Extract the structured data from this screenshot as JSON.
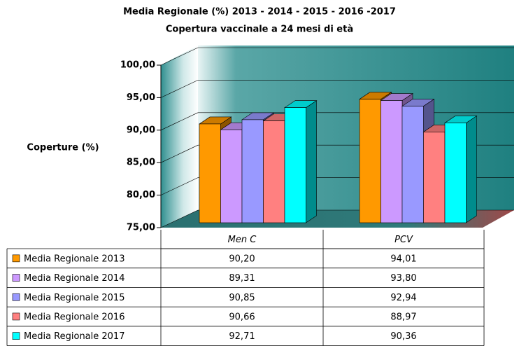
{
  "chart_data": {
    "type": "bar3d",
    "title": "Media Regionale (%)   2013 - 2014 - 2015 - 2016 -2017",
    "subtitle": "Copertura vaccinale a 24 mesi di età",
    "y_label": "Coperture (%)",
    "categories": [
      "Men C",
      "PCV"
    ],
    "series": [
      {
        "name": "Media Regionale 2013",
        "color": "#ff9900",
        "values": [
          90.2,
          94.01
        ],
        "value_labels": [
          "90,20",
          "94,01"
        ]
      },
      {
        "name": "Media Regionale 2014",
        "color": "#cc99ff",
        "values": [
          89.31,
          93.8
        ],
        "value_labels": [
          "89,31",
          "93,80"
        ]
      },
      {
        "name": "Media Regionale 2015",
        "color": "#9999ff",
        "values": [
          90.85,
          92.94
        ],
        "value_labels": [
          "90,85",
          "92,94"
        ]
      },
      {
        "name": "Media Regionale 2016",
        "color": "#ff8080",
        "values": [
          90.66,
          88.97
        ],
        "value_labels": [
          "90,66",
          "88,97"
        ]
      },
      {
        "name": "Media Regionale 2017",
        "color": "#00ffff",
        "values": [
          92.71,
          90.36
        ],
        "value_labels": [
          "92,71",
          "90,36"
        ]
      }
    ],
    "ylim": [
      75,
      100
    ],
    "yticks": [
      {
        "value": 75,
        "label": "75,00"
      },
      {
        "value": 80,
        "label": "80,00"
      },
      {
        "value": 85,
        "label": "85,00"
      },
      {
        "value": 90,
        "label": "90,00"
      },
      {
        "value": 95,
        "label": "95,00"
      },
      {
        "value": 100,
        "label": "100,00"
      }
    ],
    "grid": true
  }
}
